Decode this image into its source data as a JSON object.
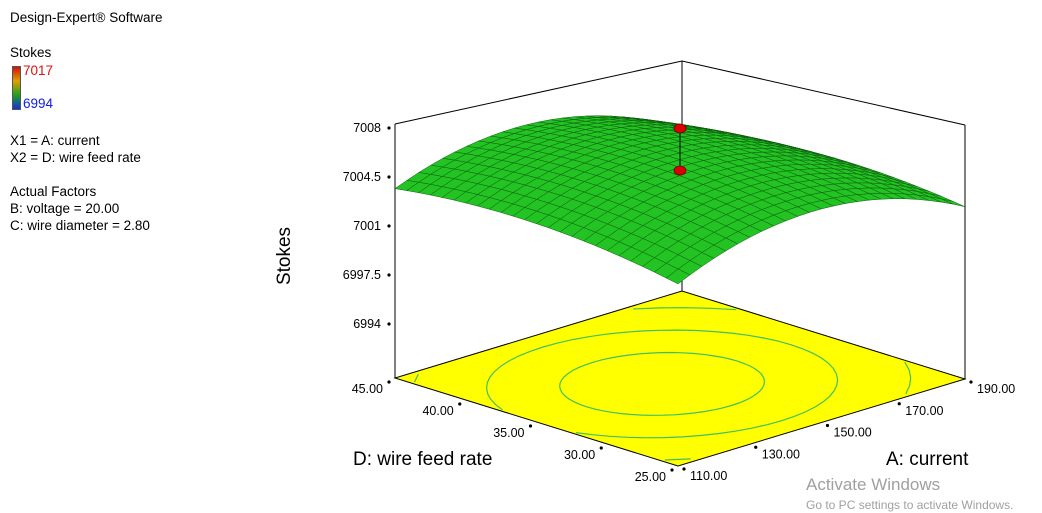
{
  "header": {
    "software": "Design-Expert® Software"
  },
  "legend": {
    "title": "Stokes",
    "high": "7017",
    "low": "6994",
    "high_color": "#e01010",
    "low_color": "#1020e0"
  },
  "factors": {
    "x1": "X1 = A: current",
    "x2": "X2 = D: wire feed rate",
    "actual_title": "Actual Factors",
    "b": "B: voltage = 20.00",
    "c": "C: wire diameter = 2.80"
  },
  "chart_data": {
    "type": "surface3d",
    "zlabel": "Stokes",
    "xlabel": "A: current",
    "ylabel": "D: wire feed rate",
    "x_ticks": [
      "110.00",
      "130.00",
      "150.00",
      "170.00",
      "190.00"
    ],
    "y_ticks": [
      "25.00",
      "30.00",
      "35.00",
      "40.00",
      "45.00"
    ],
    "z_ticks": [
      "6994",
      "6997.5",
      "7001",
      "7004.5",
      "7008"
    ],
    "xlim": [
      110,
      190
    ],
    "ylim": [
      25,
      45
    ],
    "zlim": [
      6994,
      7008
    ],
    "surface_color": "#22c322",
    "floor_color": "#ffff00",
    "contour_color": "#40c060",
    "corner_values": [
      {
        "x": 110,
        "y": 25,
        "z": 7005.6
      },
      {
        "x": 110,
        "y": 45,
        "z": 7004.5
      },
      {
        "x": 190,
        "y": 25,
        "z": 7001.2
      },
      {
        "x": 190,
        "y": 45,
        "z": 7002.5
      }
    ],
    "peak": {
      "x": 145,
      "y": 35,
      "z": 7006.3
    },
    "design_points": [
      {
        "x": 150,
        "y": 35,
        "z": 7008
      },
      {
        "x": 150,
        "y": 35,
        "z": 7005
      }
    ],
    "design_point_color": "#dd0000"
  },
  "watermark": {
    "line1": "Activate Windows",
    "line2": "Go to PC settings to activate Windows."
  }
}
